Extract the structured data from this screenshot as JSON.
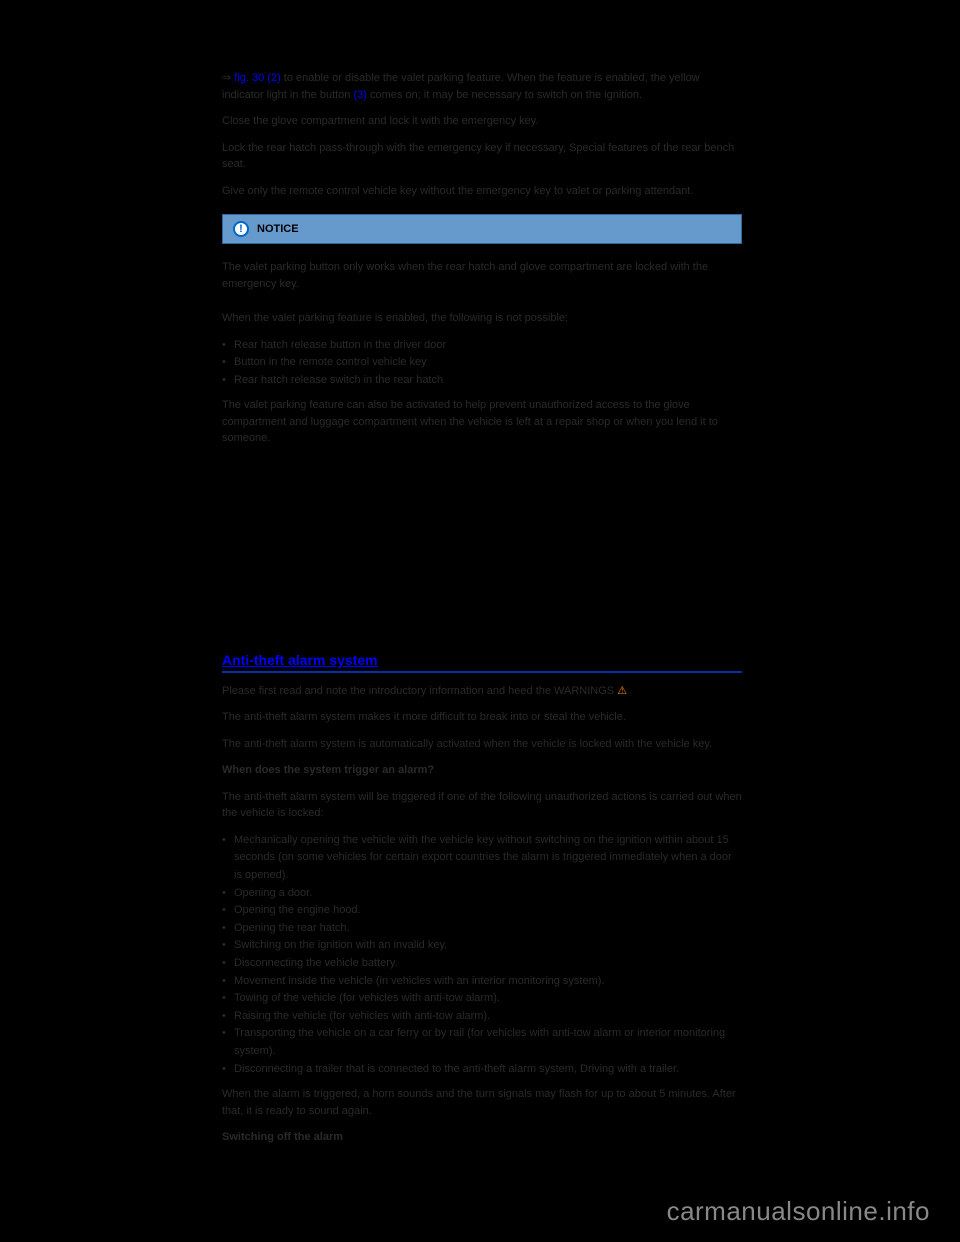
{
  "colors": {
    "page_bg": "#000000",
    "body_text": "#2a2a2a",
    "link": "#0000ff",
    "notice_bg": "#6699cc",
    "notice_border": "#336699",
    "notice_icon_border": "#0066cc",
    "heading": "#0000ff",
    "heading_underline": "#0033aa",
    "warning": "#ff8800",
    "watermark": "#888888"
  },
  "typography": {
    "body_fontsize": 11,
    "heading_fontsize": 14,
    "watermark_fontsize": 26
  },
  "top_para": {
    "pre": "⇒ ",
    "link1": "fig. 30 (2)",
    "mid1": " to enable or disable the valet parking feature. When the feature is enabled, the yellow indicator light in the button ",
    "link2": "(3)",
    "mid2": " comes on; it may be necessary to switch on the ignition."
  },
  "para2": "Close the glove compartment and lock it with the emergency key.",
  "para3": "Lock the rear hatch pass-through with the emergency key if necessary, Special features of the rear bench seat.",
  "para4": "Give only the remote control vehicle key without the emergency key to valet or parking attendant.",
  "notice": {
    "label": "NOTICE"
  },
  "notice_body": "The valet parking button only works when the rear hatch and glove compartment are locked with the emergency key.",
  "para5": "When the valet parking feature is enabled, the following is not possible:",
  "bullets": [
    "Rear hatch release button in the driver door",
    "Button in the remote control vehicle key",
    "Rear hatch release switch in the rear hatch"
  ],
  "para6": "The valet parking feature can also be activated to help prevent unauthorized access to the glove compartment and luggage compartment when the vehicle is left at a repair shop or when you lend it to someone.",
  "section_heading": "Anti-theft alarm system",
  "intro_line": {
    "pre": "Please first read and note the introductory information and heed the WARNINGS ",
    "warn_icon": "⚠"
  },
  "para7": "The anti-theft alarm system makes it more difficult to break into or steal the vehicle.",
  "para8": "The anti-theft alarm system is automatically activated when the vehicle is locked with the vehicle key.",
  "sub1": "When does the system trigger an alarm?",
  "para9": "The anti-theft alarm system will be triggered if one of the following unauthorized actions is carried out when the vehicle is locked:",
  "bullets2": [
    "Mechanically opening the vehicle with the vehicle key without switching on the ignition within about 15 seconds (on some vehicles for certain export countries the alarm is triggered immediately when a door is opened).",
    "Opening a door.",
    "Opening the engine hood.",
    "Opening the rear hatch.",
    "Switching on the ignition with an invalid key.",
    "Disconnecting the vehicle battery.",
    "Movement inside the vehicle (in vehicles with an interior monitoring system).",
    "Towing of the vehicle (for vehicles with anti-tow alarm).",
    "Raising the vehicle (for vehicles with anti-tow alarm).",
    "Transporting the vehicle on a car ferry or by rail (for vehicles with anti-tow alarm or interior monitoring system).",
    "Disconnecting a trailer that is connected to the anti-theft alarm system, Driving with a trailer."
  ],
  "para10": "When the alarm is triggered, a horn sounds and the turn signals may flash for up to about 5 minutes. After that, it is ready to sound again.",
  "sub2": "Switching off the alarm",
  "watermark": "carmanualsonline.info"
}
